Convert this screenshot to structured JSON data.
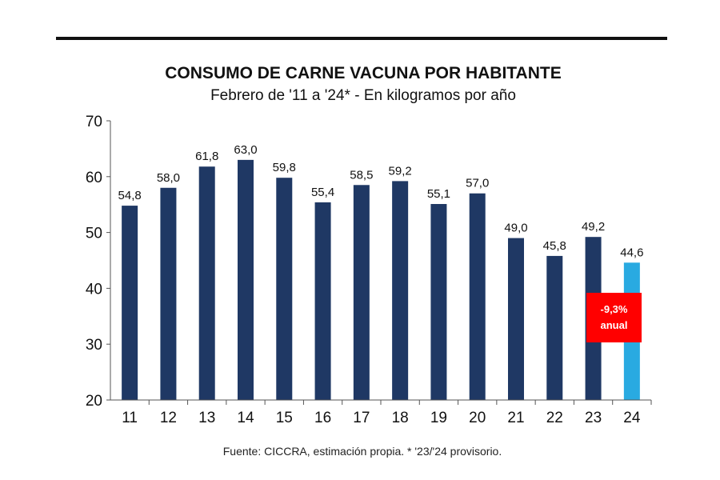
{
  "chart_data": {
    "type": "bar",
    "title": "CONSUMO DE CARNE VACUNA POR HABITANTE",
    "subtitle": "Febrero de '11 a '24* - En kilogramos por año",
    "categories": [
      "11",
      "12",
      "13",
      "14",
      "15",
      "16",
      "17",
      "18",
      "19",
      "20",
      "21",
      "22",
      "23",
      "24"
    ],
    "values": [
      54.8,
      58.0,
      61.8,
      63.0,
      59.8,
      55.4,
      58.5,
      59.2,
      55.1,
      57.0,
      49.0,
      45.8,
      49.2,
      44.6
    ],
    "value_labels": [
      "54,8",
      "58,0",
      "61,8",
      "63,0",
      "59,8",
      "55,4",
      "58,5",
      "59,2",
      "55,1",
      "57,0",
      "49,0",
      "45,8",
      "49,2",
      "44,6"
    ],
    "ylim": [
      20,
      70
    ],
    "yticks": [
      20,
      30,
      40,
      50,
      60,
      70
    ],
    "xlabel": "",
    "ylabel": "",
    "grid": false,
    "highlight_index": 13,
    "colors": {
      "bar": "#1f3864",
      "highlight": "#29aae1",
      "callout": "#ff0000"
    },
    "annotation": {
      "line1": "-9,3%",
      "line2": "anual"
    }
  },
  "footer": {
    "source": "Fuente: CICCRA, estimación propia. * '23/'24 provisorio."
  }
}
